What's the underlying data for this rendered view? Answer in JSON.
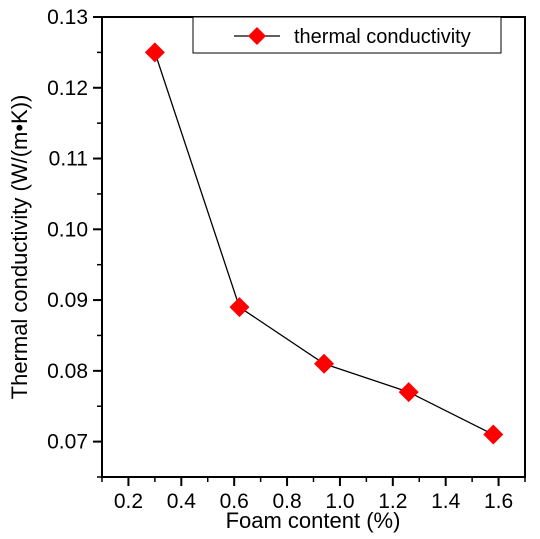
{
  "chart_data": {
    "type": "line",
    "xlabel": "Foam content (%)",
    "ylabel": "Thermal conductivity (W/(m•K))",
    "xlim": [
      0.1,
      1.7
    ],
    "ylim": [
      0.065,
      0.13
    ],
    "xticks": [
      "0.2",
      "0.4",
      "0.6",
      "0.8",
      "1.0",
      "1.2",
      "1.4",
      "1.6"
    ],
    "xtick_values": [
      0.2,
      0.4,
      0.6,
      0.8,
      1.0,
      1.2,
      1.4,
      1.6
    ],
    "yticks": [
      "0.07",
      "0.08",
      "0.09",
      "0.10",
      "0.11",
      "0.12",
      "0.13"
    ],
    "ytick_values": [
      0.07,
      0.08,
      0.09,
      0.1,
      0.11,
      0.12,
      0.13
    ],
    "grid": false,
    "legend_position": "top-right",
    "series": [
      {
        "name": "thermal conductivity",
        "marker": "diamond",
        "marker_color": "#ff0000",
        "line_color": "#000000",
        "x": [
          0.3,
          0.62,
          0.94,
          1.26,
          1.58
        ],
        "y": [
          0.125,
          0.089,
          0.081,
          0.077,
          0.071
        ]
      }
    ]
  }
}
